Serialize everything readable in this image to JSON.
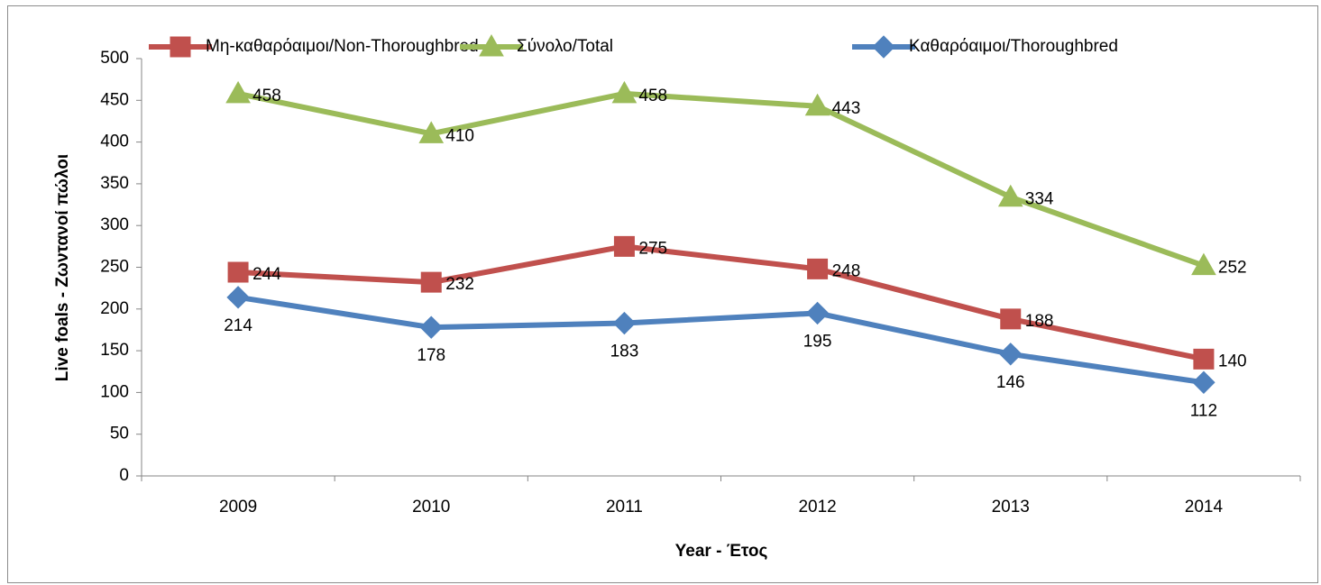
{
  "chart_data": {
    "type": "line",
    "categories": [
      "2009",
      "2010",
      "2011",
      "2012",
      "2013",
      "2014"
    ],
    "series": [
      {
        "name": "Μη-καθαρόαιμοι/Non-Thoroughbred",
        "color": "#c0504d",
        "marker": "square",
        "values": [
          244,
          232,
          275,
          248,
          188,
          140
        ]
      },
      {
        "name": "Σύνολο/Total",
        "color": "#9bbb59",
        "marker": "triangle",
        "values": [
          458,
          410,
          458,
          443,
          334,
          252
        ]
      },
      {
        "name": "Καθαρόαιμοι/Thoroughbred",
        "color": "#4f81bd",
        "marker": "diamond",
        "values": [
          214,
          178,
          183,
          195,
          146,
          112
        ]
      }
    ],
    "x_label": "Year - Έτος",
    "y_label": "Live foals - Ζωντανοί πώλοι",
    "ylim": [
      0,
      500
    ],
    "yticks": [
      0,
      50,
      100,
      150,
      200,
      250,
      300,
      350,
      400,
      450,
      500
    ],
    "grid": false,
    "legend": "top"
  }
}
